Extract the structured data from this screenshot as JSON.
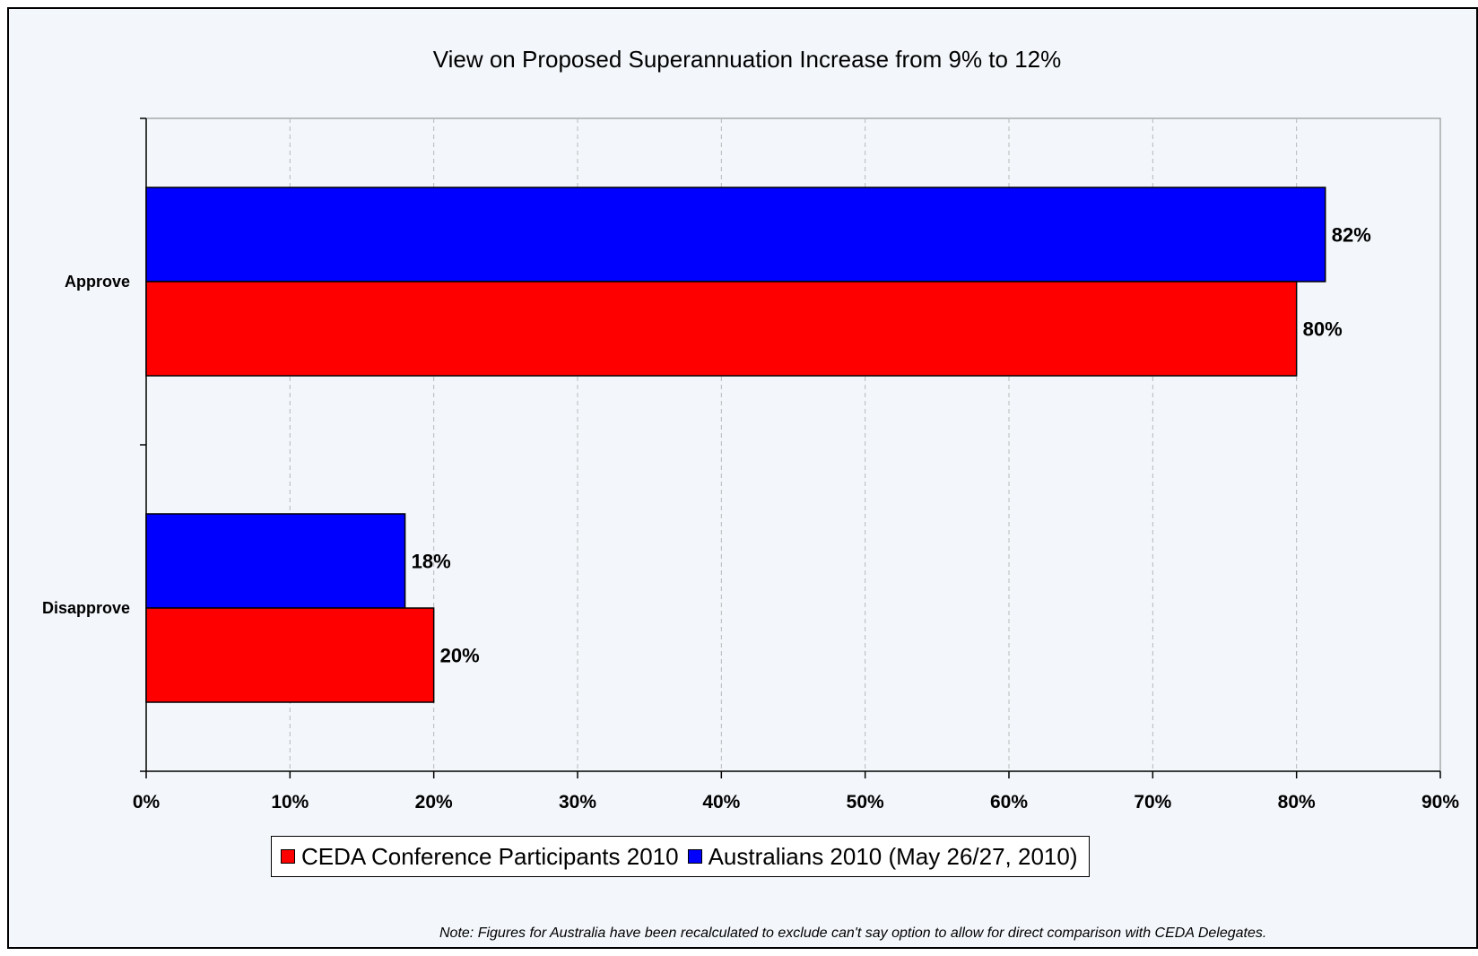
{
  "chart_data": {
    "type": "bar",
    "orientation": "horizontal",
    "title": "View on Proposed Superannuation Increase from 9% to 12%",
    "categories": [
      "Approve",
      "Disapprove"
    ],
    "series": [
      {
        "name": "CEDA Conference Participants 2010",
        "color": "#ff0000",
        "values": [
          80,
          20
        ],
        "labels": [
          "80%",
          "20%"
        ]
      },
      {
        "name": "Australians 2010 (May 26/27, 2010)",
        "color": "#0000ff",
        "values": [
          82,
          18
        ],
        "labels": [
          "82%",
          "18%"
        ]
      }
    ],
    "xlim": [
      0,
      90
    ],
    "x_ticks": [
      "0%",
      "10%",
      "20%",
      "30%",
      "40%",
      "50%",
      "60%",
      "70%",
      "80%",
      "90%"
    ],
    "xlabel": "",
    "ylabel": "",
    "grid": "vertical dashed",
    "legend_position": "bottom",
    "note": "Note: Figures for Australia have been recalculated to exclude can't say option to allow for direct comparison with CEDA Delegates."
  }
}
